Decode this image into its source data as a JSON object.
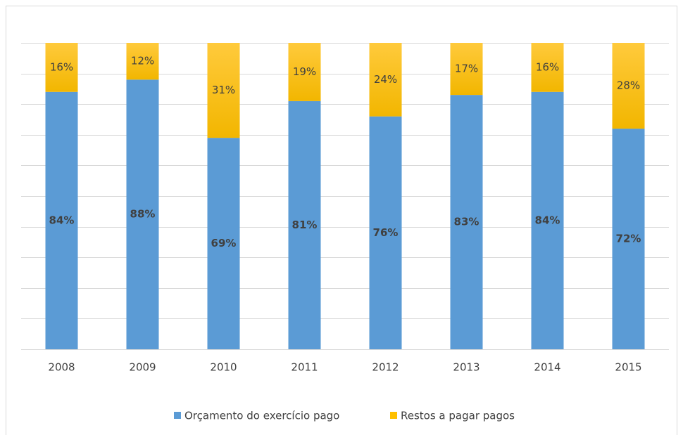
{
  "chart_data": {
    "type": "stacked_bar",
    "categories": [
      "2008",
      "2009",
      "2010",
      "2011",
      "2012",
      "2013",
      "2014",
      "2015"
    ],
    "series": [
      {
        "name": "Orçamento do exercício pago",
        "color": "#5b9bd5",
        "values": [
          84,
          88,
          69,
          81,
          76,
          83,
          84,
          72
        ],
        "value_labels": [
          "84%",
          "88%",
          "69%",
          "81%",
          "76%",
          "83%",
          "84%",
          "72%"
        ]
      },
      {
        "name": "Restos a pagar pagos",
        "color": "#ffc000",
        "values": [
          16,
          12,
          31,
          19,
          24,
          17,
          16,
          28
        ],
        "value_labels": [
          "16%",
          "12%",
          "31%",
          "19%",
          "24%",
          "17%",
          "16%",
          "28%"
        ]
      }
    ],
    "ylim": [
      0,
      100
    ],
    "yticks": [
      0,
      10,
      20,
      30,
      40,
      50,
      60,
      70,
      80,
      90,
      100
    ],
    "grid": true,
    "legend": "bottom"
  }
}
